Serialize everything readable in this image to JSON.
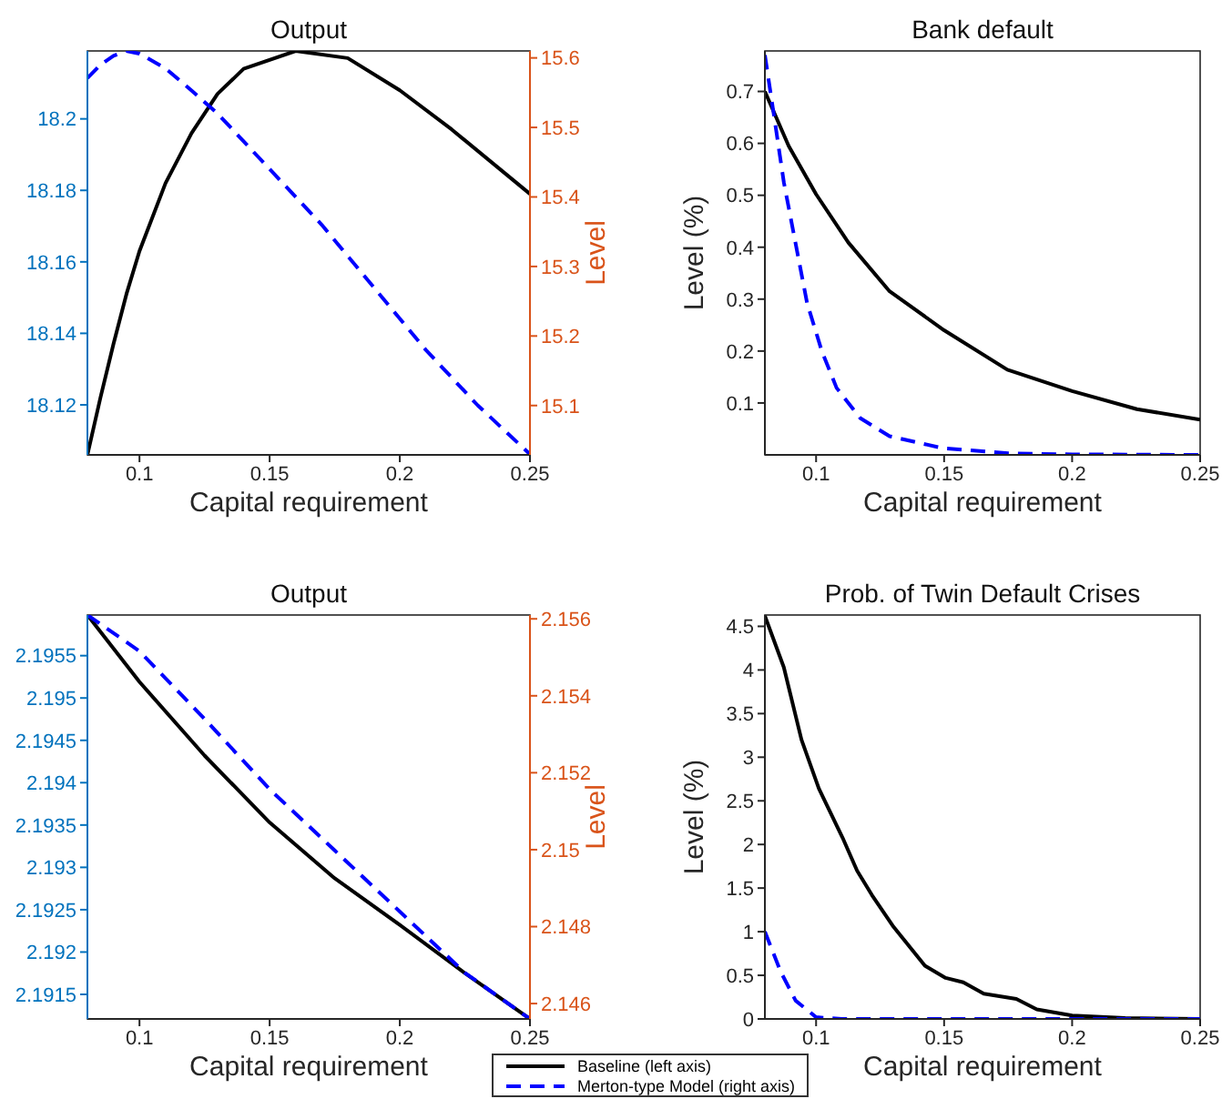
{
  "chart_data": [
    {
      "type": "line",
      "title": "Output",
      "xlabel": "Capital requirement",
      "y2label": "Level",
      "xlim": [
        0.08,
        0.25
      ],
      "xticks": [
        0.1,
        0.15,
        0.2,
        0.25
      ],
      "ylim": [
        18.106,
        18.219
      ],
      "yticks": [
        18.12,
        18.14,
        18.16,
        18.18,
        18.2
      ],
      "y2lim": [
        15.029,
        15.61
      ],
      "y2ticks": [
        15.1,
        15.2,
        15.3,
        15.4,
        15.5,
        15.6
      ],
      "series": [
        {
          "color": "#000000",
          "line_style": "solid",
          "x": [
            0.08,
            0.085,
            0.09,
            0.095,
            0.1,
            0.11,
            0.12,
            0.13,
            0.14,
            0.16,
            0.18,
            0.2,
            0.22,
            0.25
          ],
          "values": [
            18.106,
            18.122,
            18.137,
            18.151,
            18.163,
            18.182,
            18.196,
            18.207,
            18.214,
            18.219,
            18.217,
            18.208,
            18.197,
            18.179
          ]
        },
        {
          "color": "#0000ff",
          "line_style": "dashed",
          "axis": "y2",
          "x": [
            0.08,
            0.085,
            0.09,
            0.095,
            0.1,
            0.11,
            0.12,
            0.13,
            0.15,
            0.17,
            0.19,
            0.21,
            0.23,
            0.25
          ],
          "values": [
            15.571,
            15.59,
            15.603,
            15.61,
            15.606,
            15.585,
            15.553,
            15.52,
            15.44,
            15.36,
            15.27,
            15.18,
            15.1,
            15.03
          ]
        }
      ]
    },
    {
      "type": "line",
      "title": "Bank default",
      "xlabel": "Capital requirement",
      "ylabel": "Level (%)",
      "xlim": [
        0.08,
        0.25
      ],
      "xticks": [
        0.1,
        0.15,
        0.2,
        0.25
      ],
      "ylim": [
        0,
        0.778
      ],
      "yticks": [
        0.1,
        0.2,
        0.3,
        0.4,
        0.5,
        0.6,
        0.7
      ],
      "series": [
        {
          "color": "#000000",
          "line_style": "solid",
          "x": [
            0.08,
            0.0893,
            0.1,
            0.1126,
            0.1287,
            0.15,
            0.1747,
            0.2,
            0.2253,
            0.25
          ],
          "values": [
            0.7,
            0.595,
            0.502,
            0.409,
            0.315,
            0.24,
            0.164,
            0.123,
            0.088,
            0.068
          ]
        },
        {
          "color": "#0000ff",
          "line_style": "dashed",
          "x": [
            0.08,
            0.0839,
            0.0874,
            0.0965,
            0.1023,
            0.108,
            0.1172,
            0.1287,
            0.1494,
            0.175,
            0.2,
            0.25
          ],
          "values": [
            0.77,
            0.642,
            0.525,
            0.292,
            0.199,
            0.129,
            0.071,
            0.036,
            0.013,
            0.003,
            0.001,
            0
          ]
        }
      ]
    },
    {
      "type": "line",
      "title": "Output",
      "xlabel": "Capital requirement",
      "y2label": "Level",
      "legend": "bottom",
      "xlim": [
        0.08,
        0.25
      ],
      "xticks": [
        0.1,
        0.15,
        0.2,
        0.25
      ],
      "ylim": [
        2.19121,
        2.19598
      ],
      "yticks": [
        2.1915,
        2.192,
        2.1925,
        2.193,
        2.1935,
        2.194,
        2.1945,
        2.195,
        2.1955
      ],
      "y2lim": [
        2.1456,
        2.1561
      ],
      "y2ticks": [
        2.146,
        2.148,
        2.15,
        2.152,
        2.154,
        2.156
      ],
      "series": [
        {
          "name": "Baseline (left axis)",
          "color": "#000000",
          "line_style": "solid",
          "x": [
            0.08,
            0.1,
            0.125,
            0.15,
            0.175,
            0.2,
            0.225,
            0.25
          ],
          "values": [
            2.19598,
            2.19519,
            2.19432,
            2.19353,
            2.19287,
            2.19232,
            2.19175,
            2.19121
          ]
        },
        {
          "name": "Merton-type Model (right axis)",
          "color": "#0000ff",
          "line_style": "dashed",
          "axis": "y2",
          "x": [
            0.08,
            0.1,
            0.125,
            0.15,
            0.175,
            0.2,
            0.225,
            0.25
          ],
          "values": [
            2.1561,
            2.15516,
            2.1534,
            2.15157,
            2.14998,
            2.14839,
            2.1468,
            2.1456
          ]
        }
      ]
    },
    {
      "type": "line",
      "title": "Prob. of Twin Default Crises",
      "xlabel": "Capital requirement",
      "ylabel": "Level (%)",
      "xlim": [
        0.08,
        0.25
      ],
      "xticks": [
        0.1,
        0.15,
        0.2,
        0.25
      ],
      "ylim": [
        0,
        4.63
      ],
      "yticks": [
        0,
        0.5,
        1,
        1.5,
        2,
        2.5,
        3,
        3.5,
        4,
        4.5
      ],
      "series": [
        {
          "color": "#000000",
          "line_style": "solid",
          "x": [
            0.08,
            0.0874,
            0.0943,
            0.1011,
            0.1103,
            0.116,
            0.1218,
            0.1299,
            0.1425,
            0.1506,
            0.1575,
            0.1655,
            0.1782,
            0.1862,
            0.2,
            0.2207,
            0.25
          ],
          "values": [
            4.62,
            4.03,
            3.2,
            2.64,
            2.08,
            1.7,
            1.42,
            1.07,
            0.61,
            0.47,
            0.42,
            0.29,
            0.23,
            0.11,
            0.04,
            0.01,
            0
          ]
        },
        {
          "color": "#0000ff",
          "line_style": "dashed",
          "x": [
            0.08,
            0.0862,
            0.092,
            0.1,
            0.11,
            0.15,
            0.2,
            0.25
          ],
          "values": [
            1.0,
            0.54,
            0.21,
            0.02,
            0,
            0,
            0,
            0
          ]
        }
      ]
    }
  ]
}
